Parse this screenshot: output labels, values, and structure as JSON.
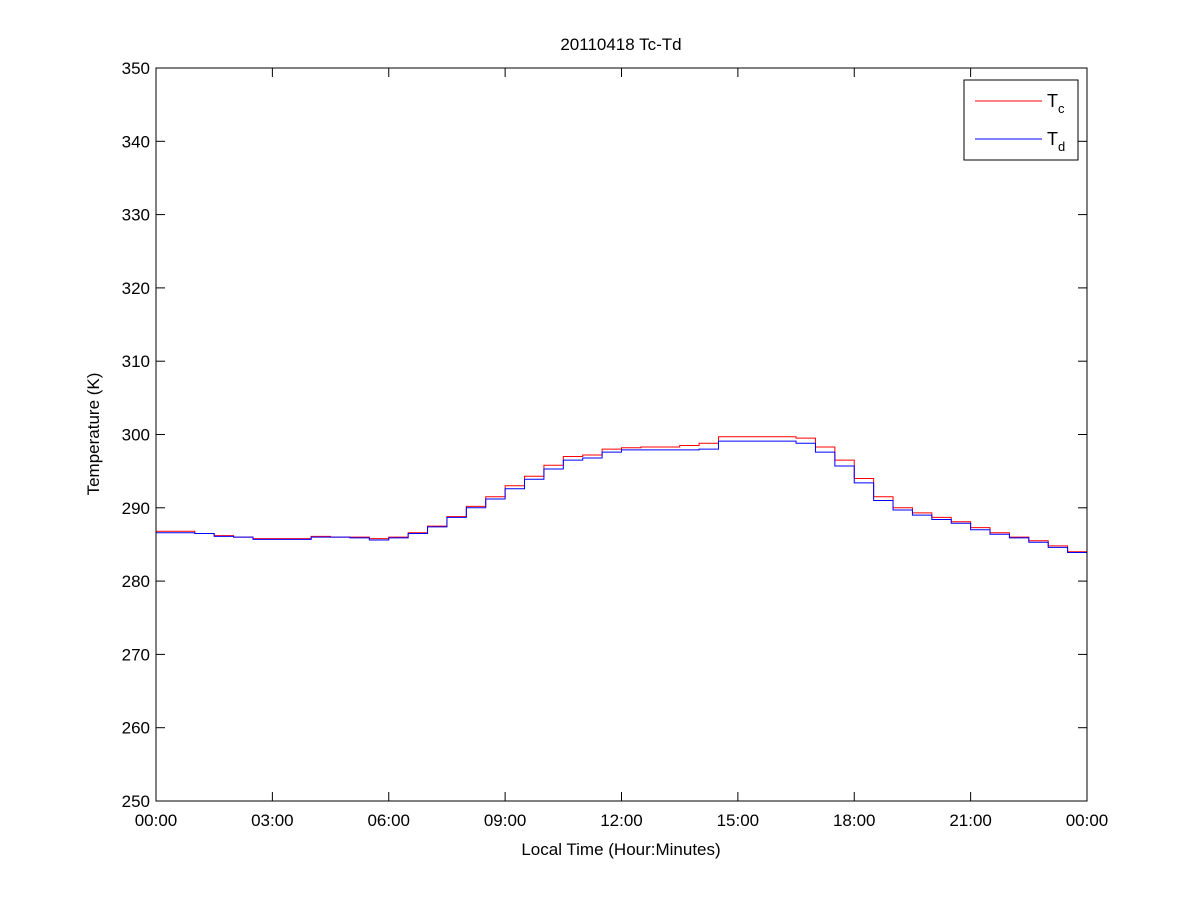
{
  "chart_data": {
    "type": "line",
    "title": "20110418 Tc-Td",
    "xlabel": "Local Time (Hour:Minutes)",
    "ylabel": "Temperature (K)",
    "xlim": [
      0,
      24
    ],
    "ylim": [
      250,
      350
    ],
    "xticks": [
      0,
      3,
      6,
      9,
      12,
      15,
      18,
      21,
      24
    ],
    "xtick_labels": [
      "00:00",
      "03:00",
      "06:00",
      "09:00",
      "12:00",
      "15:00",
      "18:00",
      "21:00",
      "00:00"
    ],
    "yticks": [
      250,
      260,
      270,
      280,
      290,
      300,
      310,
      320,
      330,
      340,
      350
    ],
    "ytick_labels": [
      "250",
      "260",
      "270",
      "280",
      "290",
      "300",
      "310",
      "320",
      "330",
      "340",
      "350"
    ],
    "grid": false,
    "legend_placement": "top-right",
    "x": [
      0,
      0.5,
      1,
      1.5,
      2,
      2.5,
      3,
      3.5,
      4,
      4.5,
      5,
      5.5,
      6,
      6.5,
      7,
      7.5,
      8,
      8.5,
      9,
      9.5,
      10,
      10.5,
      11,
      11.5,
      12,
      12.5,
      13,
      13.5,
      14,
      14.5,
      15,
      15.5,
      16,
      16.5,
      17,
      17.5,
      18,
      18.5,
      19,
      19.5,
      20,
      20.5,
      21,
      21.5,
      22,
      22.5,
      23,
      23.5,
      24
    ],
    "series": [
      {
        "name": "T",
        "subscript": "c",
        "color": "#ff0000",
        "values": [
          286.8,
          286.8,
          286.5,
          286.2,
          286.0,
          285.8,
          285.8,
          285.8,
          286.1,
          286.0,
          286.0,
          285.8,
          286.0,
          286.6,
          287.5,
          288.8,
          290.2,
          291.5,
          293.0,
          294.3,
          295.8,
          297.0,
          297.2,
          298.0,
          298.2,
          298.3,
          298.3,
          298.5,
          298.8,
          299.7,
          299.7,
          299.7,
          299.7,
          299.5,
          298.3,
          296.5,
          294.0,
          291.5,
          290.0,
          289.3,
          288.7,
          288.1,
          287.3,
          286.6,
          286.0,
          285.5,
          284.8,
          284.0,
          283.2
        ]
      },
      {
        "name": "T",
        "subscript": "d",
        "color": "#0000ff",
        "values": [
          286.6,
          286.6,
          286.5,
          286.1,
          286.0,
          285.7,
          285.7,
          285.7,
          286.0,
          286.0,
          285.9,
          285.6,
          285.9,
          286.5,
          287.4,
          288.7,
          290.0,
          291.2,
          292.6,
          293.9,
          295.3,
          296.5,
          296.8,
          297.6,
          297.9,
          297.9,
          297.9,
          297.9,
          298.0,
          299.1,
          299.1,
          299.1,
          299.1,
          298.8,
          297.6,
          295.7,
          293.4,
          291.0,
          289.7,
          289.0,
          288.4,
          287.9,
          287.0,
          286.4,
          285.9,
          285.3,
          284.6,
          283.9,
          283.0
        ]
      }
    ]
  }
}
